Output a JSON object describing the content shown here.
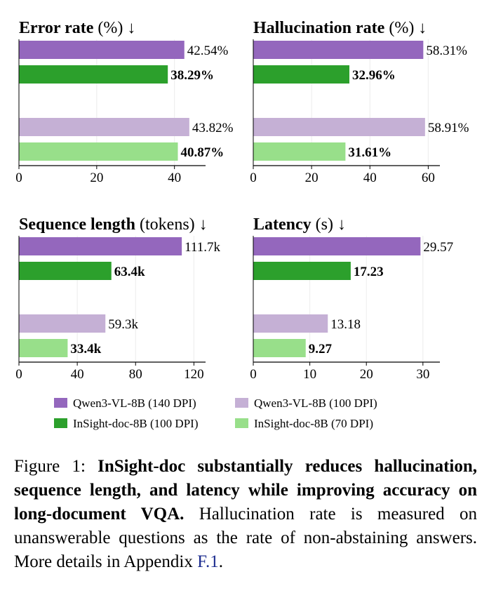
{
  "chart_data": [
    {
      "type": "bar",
      "orientation": "horizontal",
      "title": "Error rate",
      "unit_label": "(%) ↓",
      "xlim": [
        0,
        48
      ],
      "xticks": [
        "0",
        "20",
        "40"
      ],
      "xtick_values": [
        0,
        20,
        40
      ],
      "series": [
        {
          "name": "Qwen3-VL-8B (140 DPI)",
          "value": 42.54,
          "label": "42.54%",
          "bold": false
        },
        {
          "name": "InSight-doc-8B (100 DPI)",
          "value": 38.29,
          "label": "38.29%",
          "bold": true
        },
        {
          "name": "Qwen3-VL-8B (100 DPI)",
          "value": 43.82,
          "label": "43.82%",
          "bold": false
        },
        {
          "name": "InSight-doc-8B (70 DPI)",
          "value": 40.87,
          "label": "40.87%",
          "bold": true
        }
      ]
    },
    {
      "type": "bar",
      "orientation": "horizontal",
      "title": "Hallucination rate",
      "unit_label": "(%) ↓",
      "xlim": [
        0,
        64
      ],
      "xticks": [
        "0",
        "20",
        "40",
        "60"
      ],
      "xtick_values": [
        0,
        20,
        40,
        60
      ],
      "series": [
        {
          "name": "Qwen3-VL-8B (140 DPI)",
          "value": 58.31,
          "label": "58.31%",
          "bold": false
        },
        {
          "name": "InSight-doc-8B (100 DPI)",
          "value": 32.96,
          "label": "32.96%",
          "bold": true
        },
        {
          "name": "Qwen3-VL-8B (100 DPI)",
          "value": 58.91,
          "label": "58.91%",
          "bold": false
        },
        {
          "name": "InSight-doc-8B (70 DPI)",
          "value": 31.61,
          "label": "31.61%",
          "bold": true
        }
      ]
    },
    {
      "type": "bar",
      "orientation": "horizontal",
      "title": "Sequence length",
      "unit_label": "(tokens) ↓",
      "xlim": [
        0,
        128
      ],
      "xticks": [
        "0",
        "40",
        "80",
        "120"
      ],
      "xtick_values": [
        0,
        40,
        80,
        120
      ],
      "series": [
        {
          "name": "Qwen3-VL-8B (140 DPI)",
          "value": 111.7,
          "label": "111.7k",
          "bold": false
        },
        {
          "name": "InSight-doc-8B (100 DPI)",
          "value": 63.4,
          "label": "63.4k",
          "bold": true
        },
        {
          "name": "Qwen3-VL-8B (100 DPI)",
          "value": 59.3,
          "label": "59.3k",
          "bold": false
        },
        {
          "name": "InSight-doc-8B (70 DPI)",
          "value": 33.4,
          "label": "33.4k",
          "bold": true
        }
      ]
    },
    {
      "type": "bar",
      "orientation": "horizontal",
      "title": "Latency",
      "unit_label": "(s) ↓",
      "xlim": [
        0,
        33
      ],
      "xticks": [
        "0",
        "10",
        "20",
        "30"
      ],
      "xtick_values": [
        0,
        10,
        20,
        30
      ],
      "series": [
        {
          "name": "Qwen3-VL-8B (140 DPI)",
          "value": 29.57,
          "label": "29.57",
          "bold": false
        },
        {
          "name": "InSight-doc-8B (100 DPI)",
          "value": 17.23,
          "label": "17.23",
          "bold": true
        },
        {
          "name": "Qwen3-VL-8B (100 DPI)",
          "value": 13.18,
          "label": "13.18",
          "bold": false
        },
        {
          "name": "InSight-doc-8B (70 DPI)",
          "value": 9.27,
          "label": "9.27",
          "bold": true
        }
      ]
    }
  ],
  "colors": {
    "Qwen3-VL-8B (140 DPI)": "#9467bd",
    "InSight-doc-8B (100 DPI)": "#2ca02c",
    "Qwen3-VL-8B (100 DPI)": "#c5b0d5",
    "InSight-doc-8B (70 DPI)": "#98df8a"
  },
  "legend": [
    {
      "label": "Qwen3-VL-8B (140 DPI)",
      "color": "#9467bd"
    },
    {
      "label": "Qwen3-VL-8B (100 DPI)",
      "color": "#c5b0d5"
    },
    {
      "label": "InSight-doc-8B (100 DPI)",
      "color": "#2ca02c"
    },
    {
      "label": "InSight-doc-8B (70 DPI)",
      "color": "#98df8a"
    }
  ],
  "caption": {
    "prefix": "Figure 1: ",
    "bold": "InSight-doc substantially reduces hallucination, sequence length, and latency while improving accuracy on long-document VQA.",
    "text": " Hallucination rate is measured on unanswerable questions as the rate of non-abstaining answers. More details in Appendix ",
    "link": "F.1",
    "suffix": "."
  }
}
